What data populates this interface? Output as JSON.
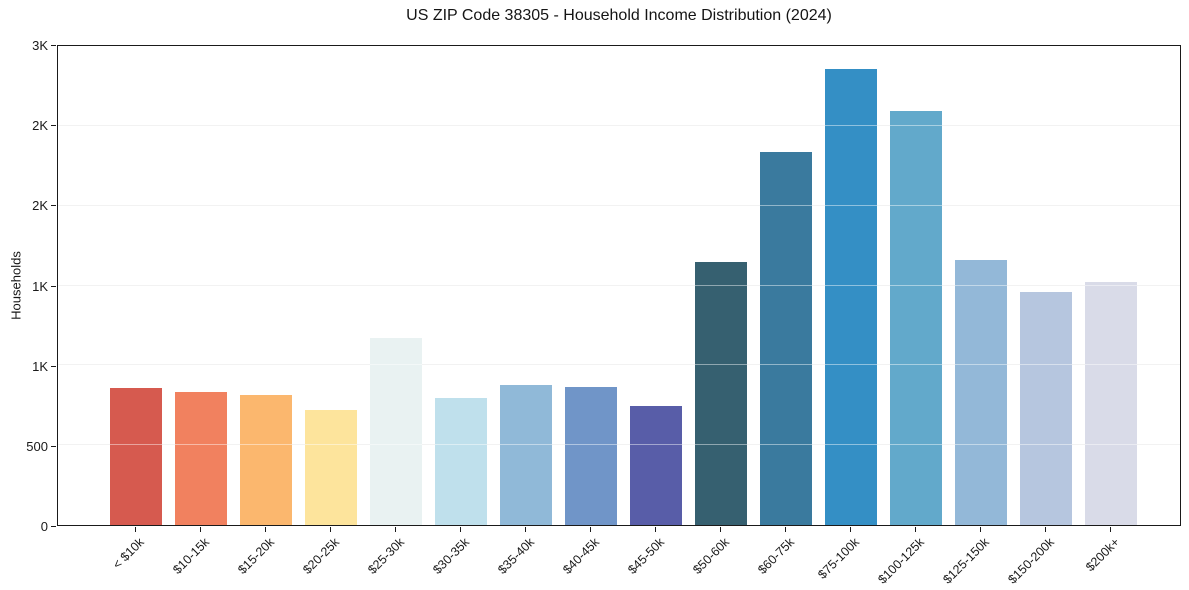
{
  "chart_data": {
    "type": "bar",
    "title": "US ZIP Code 38305 - Household Income Distribution (2024)",
    "xlabel": "",
    "ylabel": "Households",
    "ylim": [
      0,
      3000
    ],
    "grid": "horizontal, every 500, light gray, visible through bars",
    "legend": "none",
    "y_ticks": [
      {
        "value": 0,
        "label": "0"
      },
      {
        "value": 500,
        "label": "500"
      },
      {
        "value": 1000,
        "label": "1K"
      },
      {
        "value": 1500,
        "label": "1K"
      },
      {
        "value": 2000,
        "label": "2K"
      },
      {
        "value": 2500,
        "label": "2K"
      },
      {
        "value": 3000,
        "label": "3K"
      }
    ],
    "categories": [
      "< $10k",
      "$10-15k",
      "$15-20k",
      "$20-25k",
      "$25-30k",
      "$30-35k",
      "$35-40k",
      "$40-45k",
      "$45-50k",
      "$50-60k",
      "$60-75k",
      "$75-100k",
      "$100-125k",
      "$125-150k",
      "$150-200k",
      "$200k+"
    ],
    "values": [
      860,
      832,
      812,
      720,
      1171,
      798,
      874,
      864,
      745,
      1649,
      2334,
      2857,
      2594,
      1659,
      1459,
      1522
    ],
    "bar_colors": [
      "#d65a4f",
      "#f1815f",
      "#fbb76e",
      "#fde49c",
      "#e9f2f2",
      "#bfe0ec",
      "#90b9d8",
      "#7095c8",
      "#585da8",
      "#366070",
      "#3a7a9e",
      "#348fc5",
      "#62a9cb",
      "#93b8d8",
      "#b6c6df",
      "#d9dbe8"
    ]
  }
}
